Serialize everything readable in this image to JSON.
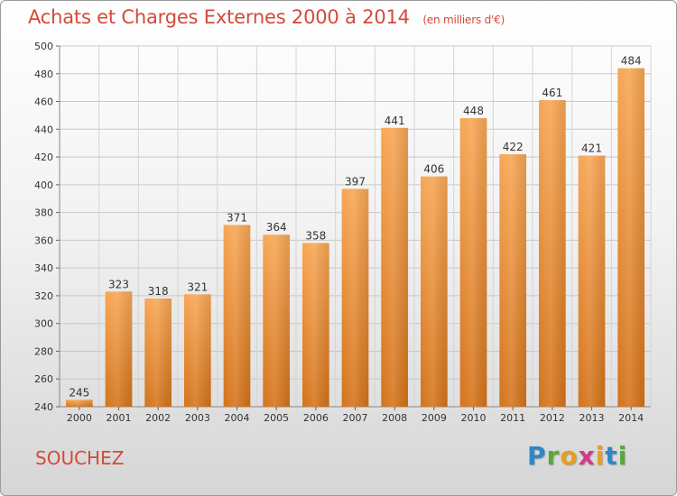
{
  "header": {
    "title": "Achats et Charges Externes 2000 à 2014",
    "unit": "(en milliers d'€)"
  },
  "footer": {
    "place": "SOUCHEZ",
    "logo_letters": [
      "P",
      "r",
      "o",
      "x",
      "i",
      "t",
      "i"
    ],
    "logo_colors": [
      "#2f86c9",
      "#5aa83a",
      "#e6a020",
      "#d33a8a",
      "#e6a020",
      "#2f86c9",
      "#5aa83a"
    ]
  },
  "chart_data": {
    "type": "bar",
    "categories": [
      "2000",
      "2001",
      "2002",
      "2003",
      "2004",
      "2005",
      "2006",
      "2007",
      "2008",
      "2009",
      "2010",
      "2011",
      "2012",
      "2013",
      "2014"
    ],
    "values": [
      245,
      323,
      318,
      321,
      371,
      364,
      358,
      397,
      441,
      406,
      448,
      422,
      461,
      421,
      484
    ],
    "ylim": [
      240,
      500
    ],
    "yticks": [
      240,
      260,
      280,
      300,
      320,
      340,
      360,
      380,
      400,
      420,
      440,
      460,
      480,
      500
    ],
    "grid": true,
    "bar_color_top": "#f7a654",
    "bar_color_bottom": "#d4731a"
  }
}
